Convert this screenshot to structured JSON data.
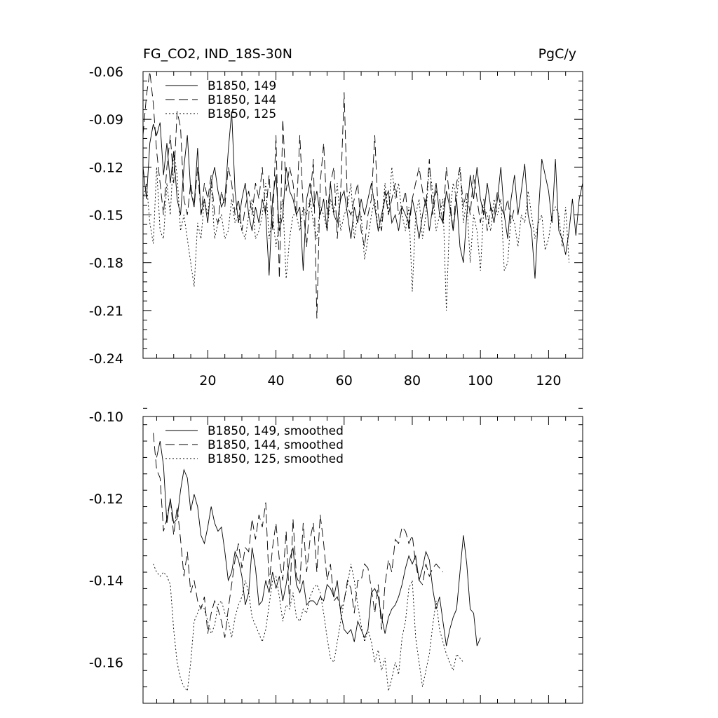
{
  "figure": {
    "title_left": "FG_CO2, IND_18S-30N",
    "title_right": "PgC/y"
  },
  "chart_data": [
    {
      "type": "line",
      "xlim": [
        1,
        130
      ],
      "ylim": [
        -0.24,
        -0.06
      ],
      "x_ticks": [
        20,
        40,
        60,
        80,
        100,
        120
      ],
      "y_ticks": [
        -0.06,
        -0.09,
        -0.12,
        -0.15,
        -0.18,
        -0.21,
        -0.24
      ],
      "y_tick_labels": [
        "-0.06",
        "-0.09",
        "-0.12",
        "-0.15",
        "-0.18",
        "-0.21",
        "-0.24"
      ],
      "legend_position": "top-left",
      "grid": false,
      "series": [
        {
          "name": "B1850, 149",
          "dash": "solid",
          "x_start": 1,
          "values": [
            -0.12,
            -0.14,
            -0.105,
            -0.093,
            -0.1,
            -0.092,
            -0.125,
            -0.105,
            -0.13,
            -0.11,
            -0.14,
            -0.15,
            -0.12,
            -0.1,
            -0.135,
            -0.145,
            -0.108,
            -0.15,
            -0.14,
            -0.155,
            -0.13,
            -0.12,
            -0.135,
            -0.145,
            -0.14,
            -0.11,
            -0.085,
            -0.135,
            -0.155,
            -0.14,
            -0.13,
            -0.15,
            -0.16,
            -0.145,
            -0.155,
            -0.14,
            -0.15,
            -0.188,
            -0.14,
            -0.125,
            -0.16,
            -0.15,
            -0.12,
            -0.135,
            -0.14,
            -0.15,
            -0.145,
            -0.185,
            -0.14,
            -0.13,
            -0.145,
            -0.135,
            -0.15,
            -0.14,
            -0.16,
            -0.13,
            -0.15,
            -0.155,
            -0.14,
            -0.135,
            -0.15,
            -0.165,
            -0.145,
            -0.155,
            -0.14,
            -0.15,
            -0.14,
            -0.13,
            -0.145,
            -0.16,
            -0.15,
            -0.14,
            -0.135,
            -0.155,
            -0.15,
            -0.16,
            -0.145,
            -0.15,
            -0.155,
            -0.14,
            -0.15,
            -0.165,
            -0.15,
            -0.14,
            -0.16,
            -0.145,
            -0.13,
            -0.15,
            -0.155,
            -0.135,
            -0.145,
            -0.16,
            -0.14,
            -0.17,
            -0.18,
            -0.15,
            -0.125,
            -0.14,
            -0.12,
            -0.14,
            -0.15,
            -0.13,
            -0.145,
            -0.155,
            -0.14,
            -0.12,
            -0.15,
            -0.165,
            -0.14,
            -0.125,
            -0.15,
            -0.135,
            -0.118,
            -0.15,
            -0.16,
            -0.19,
            -0.15,
            -0.115,
            -0.125,
            -0.135,
            -0.155,
            -0.115,
            -0.16,
            -0.165,
            -0.175,
            -0.16,
            -0.14,
            -0.163,
            -0.14,
            -0.13
          ]
        },
        {
          "name": "B1850, 144",
          "dash": "long-dash",
          "x_start": 1,
          "values": [
            -0.1,
            -0.075,
            -0.06,
            -0.08,
            -0.11,
            -0.13,
            -0.15,
            -0.12,
            -0.1,
            -0.13,
            -0.085,
            -0.095,
            -0.14,
            -0.15,
            -0.13,
            -0.145,
            -0.12,
            -0.15,
            -0.13,
            -0.14,
            -0.125,
            -0.15,
            -0.155,
            -0.135,
            -0.145,
            -0.12,
            -0.13,
            -0.15,
            -0.14,
            -0.16,
            -0.145,
            -0.135,
            -0.15,
            -0.13,
            -0.14,
            -0.12,
            -0.15,
            -0.125,
            -0.16,
            -0.1,
            -0.19,
            -0.09,
            -0.135,
            -0.12,
            -0.13,
            -0.15,
            -0.1,
            -0.145,
            -0.17,
            -0.14,
            -0.115,
            -0.215,
            -0.13,
            -0.105,
            -0.15,
            -0.13,
            -0.12,
            -0.165,
            -0.135,
            -0.073,
            -0.145,
            -0.15,
            -0.14,
            -0.13,
            -0.16,
            -0.17,
            -0.15,
            -0.14,
            -0.1,
            -0.15,
            -0.16,
            -0.135,
            -0.15,
            -0.14,
            -0.13,
            -0.15,
            -0.145,
            -0.135,
            -0.16,
            -0.14,
            -0.13,
            -0.12,
            -0.135,
            -0.145,
            -0.115,
            -0.15,
            -0.135,
            -0.14,
            -0.155,
            -0.12,
            -0.14,
            -0.16,
            -0.13,
            -0.12,
            -0.145,
            -0.135,
            -0.15,
            -0.125,
            -0.14,
            -0.155,
            -0.14,
            -0.16,
            -0.145,
            -0.15,
            -0.135,
            -0.145,
            -0.15,
            -0.14,
            -0.155,
            -0.145
          ]
        },
        {
          "name": "B1850, 125",
          "dash": "dotted",
          "x_start": 1,
          "values": [
            -0.14,
            -0.13,
            -0.155,
            -0.168,
            -0.12,
            -0.16,
            -0.165,
            -0.13,
            -0.15,
            -0.11,
            -0.125,
            -0.16,
            -0.15,
            -0.165,
            -0.18,
            -0.195,
            -0.155,
            -0.165,
            -0.14,
            -0.15,
            -0.13,
            -0.165,
            -0.155,
            -0.15,
            -0.165,
            -0.16,
            -0.14,
            -0.155,
            -0.15,
            -0.16,
            -0.165,
            -0.15,
            -0.14,
            -0.165,
            -0.16,
            -0.15,
            -0.13,
            -0.165,
            -0.15,
            -0.17,
            -0.155,
            -0.14,
            -0.19,
            -0.165,
            -0.15,
            -0.15,
            -0.16,
            -0.145,
            -0.15,
            -0.14,
            -0.155,
            -0.165,
            -0.145,
            -0.15,
            -0.16,
            -0.14,
            -0.15,
            -0.13,
            -0.16,
            -0.15,
            -0.145,
            -0.13,
            -0.165,
            -0.15,
            -0.15,
            -0.178,
            -0.165,
            -0.15,
            -0.14,
            -0.16,
            -0.155,
            -0.13,
            -0.15,
            -0.12,
            -0.14,
            -0.13,
            -0.15,
            -0.16,
            -0.145,
            -0.198,
            -0.15,
            -0.14,
            -0.165,
            -0.15,
            -0.12,
            -0.135,
            -0.16,
            -0.15,
            -0.14,
            -0.21,
            -0.15,
            -0.13,
            -0.14,
            -0.12,
            -0.155,
            -0.14,
            -0.18,
            -0.15,
            -0.16,
            -0.185,
            -0.145,
            -0.15,
            -0.16,
            -0.14,
            -0.15,
            -0.14,
            -0.185,
            -0.18,
            -0.15,
            -0.155,
            -0.17,
            -0.15,
            -0.155,
            -0.135,
            -0.15,
            -0.165,
            -0.155,
            -0.15,
            -0.172,
            -0.165,
            -0.15,
            -0.145,
            -0.15,
            -0.17,
            -0.145,
            -0.18
          ]
        }
      ]
    },
    {
      "type": "line",
      "xlim": [
        1,
        130
      ],
      "ylim": [
        -0.17,
        -0.1
      ],
      "x_ticks": [
        20,
        40,
        60,
        80,
        100,
        120
      ],
      "y_ticks": [
        -0.1,
        -0.12,
        -0.14,
        -0.16
      ],
      "y_tick_labels": [
        "-0.10",
        "-0.12",
        "-0.14",
        "-0.16"
      ],
      "legend_position": "top-left",
      "grid": false,
      "series": [
        {
          "name": "B1850, 149, smoothed",
          "dash": "solid",
          "x_start": 5,
          "values": [
            -0.11,
            -0.106,
            -0.112,
            -0.126,
            -0.12,
            -0.126,
            -0.125,
            -0.118,
            -0.113,
            -0.115,
            -0.123,
            -0.119,
            -0.122,
            -0.129,
            -0.131,
            -0.127,
            -0.122,
            -0.126,
            -0.128,
            -0.127,
            -0.133,
            -0.14,
            -0.138,
            -0.133,
            -0.135,
            -0.139,
            -0.146,
            -0.143,
            -0.132,
            -0.137,
            -0.146,
            -0.145,
            -0.14,
            -0.143,
            -0.138,
            -0.142,
            -0.139,
            -0.145,
            -0.141,
            -0.135,
            -0.132,
            -0.141,
            -0.143,
            -0.14,
            -0.146,
            -0.145,
            -0.145,
            -0.146,
            -0.144,
            -0.145,
            -0.141,
            -0.142,
            -0.144,
            -0.14,
            -0.148,
            -0.152,
            -0.153,
            -0.152,
            -0.155,
            -0.15,
            -0.152,
            -0.154,
            -0.152,
            -0.143,
            -0.142,
            -0.144,
            -0.149,
            -0.153,
            -0.149,
            -0.147,
            -0.146,
            -0.144,
            -0.141,
            -0.137,
            -0.134,
            -0.136,
            -0.134,
            -0.14,
            -0.137,
            -0.133,
            -0.135,
            -0.142,
            -0.147,
            -0.144,
            -0.15,
            -0.156,
            -0.152,
            -0.149,
            -0.147,
            -0.138,
            -0.129,
            -0.136,
            -0.147,
            -0.148,
            -0.156,
            -0.154
          ]
        },
        {
          "name": "B1850, 144, smoothed",
          "dash": "long-dash",
          "x_start": 4,
          "values": [
            -0.104,
            -0.113,
            -0.115,
            -0.128,
            -0.125,
            -0.12,
            -0.129,
            -0.122,
            -0.13,
            -0.139,
            -0.133,
            -0.143,
            -0.14,
            -0.145,
            -0.147,
            -0.144,
            -0.153,
            -0.148,
            -0.145,
            -0.147,
            -0.15,
            -0.154,
            -0.147,
            -0.141,
            -0.135,
            -0.131,
            -0.137,
            -0.132,
            -0.133,
            -0.125,
            -0.13,
            -0.124,
            -0.127,
            -0.121,
            -0.141,
            -0.132,
            -0.126,
            -0.135,
            -0.14,
            -0.128,
            -0.146,
            -0.125,
            -0.139,
            -0.141,
            -0.126,
            -0.138,
            -0.13,
            -0.126,
            -0.138,
            -0.124,
            -0.131,
            -0.14,
            -0.136,
            -0.145,
            -0.144,
            -0.147,
            -0.145,
            -0.14,
            -0.142,
            -0.148,
            -0.14,
            -0.14,
            -0.136,
            -0.137,
            -0.142,
            -0.148,
            -0.141,
            -0.152,
            -0.141,
            -0.135,
            -0.138,
            -0.13,
            -0.131,
            -0.127,
            -0.128,
            -0.131,
            -0.129,
            -0.136,
            -0.14,
            -0.141,
            -0.136,
            -0.139,
            -0.137,
            -0.136,
            -0.137,
            -0.138
          ]
        },
        {
          "name": "B1850, 125, smoothed",
          "dash": "dotted",
          "x_start": 4,
          "values": [
            -0.136,
            -0.138,
            -0.139,
            -0.138,
            -0.139,
            -0.141,
            -0.152,
            -0.16,
            -0.164,
            -0.166,
            -0.167,
            -0.16,
            -0.15,
            -0.148,
            -0.146,
            -0.147,
            -0.15,
            -0.153,
            -0.151,
            -0.146,
            -0.145,
            -0.148,
            -0.15,
            -0.154,
            -0.149,
            -0.146,
            -0.144,
            -0.14,
            -0.143,
            -0.149,
            -0.151,
            -0.153,
            -0.155,
            -0.152,
            -0.146,
            -0.14,
            -0.139,
            -0.144,
            -0.15,
            -0.146,
            -0.147,
            -0.143,
            -0.149,
            -0.15,
            -0.147,
            -0.148,
            -0.144,
            -0.142,
            -0.141,
            -0.143,
            -0.148,
            -0.154,
            -0.159,
            -0.16,
            -0.155,
            -0.15,
            -0.145,
            -0.141,
            -0.136,
            -0.14,
            -0.146,
            -0.151,
            -0.155,
            -0.152,
            -0.155,
            -0.16,
            -0.157,
            -0.162,
            -0.159,
            -0.167,
            -0.164,
            -0.16,
            -0.163,
            -0.154,
            -0.15,
            -0.142,
            -0.14,
            -0.154,
            -0.16,
            -0.166,
            -0.162,
            -0.158,
            -0.151,
            -0.145,
            -0.152,
            -0.155,
            -0.158,
            -0.16,
            -0.162,
            -0.158,
            -0.159,
            -0.16
          ]
        }
      ]
    }
  ]
}
